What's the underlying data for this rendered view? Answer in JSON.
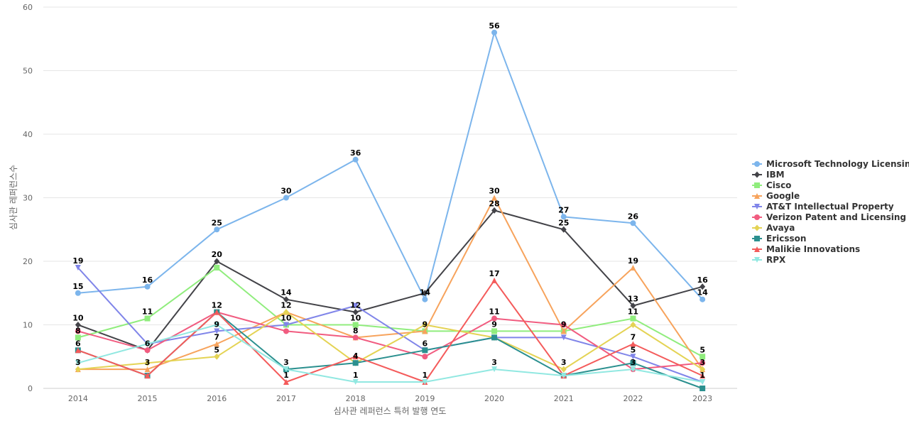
{
  "chart_data": {
    "type": "line",
    "title": "",
    "xlabel": "심사관 레퍼런스 특허 발행 연도",
    "ylabel": "심사관 레퍼런스수",
    "ylim": [
      0,
      60
    ],
    "yticks": [
      0,
      10,
      20,
      30,
      40,
      50,
      60
    ],
    "grid": true,
    "legend_position": "right",
    "x": [
      "2014",
      "2015",
      "2016",
      "2017",
      "2018",
      "2019",
      "2020",
      "2021",
      "2022",
      "2023"
    ],
    "series": [
      {
        "name": "Microsoft Technology Licensing",
        "color": "#7cb5ec",
        "marker": "circle",
        "values": [
          15,
          16,
          25,
          30,
          36,
          14,
          56,
          27,
          26,
          14
        ]
      },
      {
        "name": "IBM",
        "color": "#434348",
        "marker": "diamond",
        "values": [
          10,
          6,
          20,
          14,
          12,
          15,
          28,
          25,
          13,
          16
        ]
      },
      {
        "name": "Cisco",
        "color": "#90ed7d",
        "marker": "square",
        "values": [
          8,
          11,
          19,
          10,
          10,
          9,
          9,
          9,
          11,
          5
        ]
      },
      {
        "name": "Google",
        "color": "#f7a35c",
        "marker": "triangle",
        "values": [
          3,
          3,
          7,
          12,
          8,
          9,
          30,
          9,
          19,
          3
        ]
      },
      {
        "name": "AT&T Intellectual Property",
        "color": "#8085e9",
        "marker": "triangle-down",
        "values": [
          19,
          7,
          9,
          10,
          13,
          6,
          8,
          8,
          5,
          1
        ]
      },
      {
        "name": "Verizon Patent and Licensing",
        "color": "#f15c80",
        "marker": "circle",
        "values": [
          9,
          6,
          12,
          9,
          8,
          5,
          11,
          10,
          3,
          4
        ]
      },
      {
        "name": "Avaya",
        "color": "#e4d354",
        "marker": "diamond",
        "values": [
          3,
          4,
          5,
          12,
          4,
          10,
          8,
          3,
          10,
          3
        ]
      },
      {
        "name": "Ericsson",
        "color": "#2b908f",
        "marker": "square",
        "values": [
          6,
          2,
          12,
          3,
          4,
          6,
          8,
          2,
          4,
          0
        ]
      },
      {
        "name": "Malikie Innovations",
        "color": "#f45b5b",
        "marker": "triangle",
        "values": [
          6,
          2,
          12,
          1,
          5,
          1,
          17,
          2,
          7,
          2
        ]
      },
      {
        "name": "RPX",
        "color": "#91e8e1",
        "marker": "triangle-down",
        "values": [
          4,
          7,
          10,
          3,
          1,
          1,
          3,
          2,
          3,
          1
        ]
      }
    ],
    "data_labels": [
      {
        "x": "2014",
        "v": 19
      },
      {
        "x": "2014",
        "v": 15
      },
      {
        "x": "2014",
        "v": 10
      },
      {
        "x": "2014",
        "v": 8
      },
      {
        "x": "2014",
        "v": 6
      },
      {
        "x": "2014",
        "v": 3
      },
      {
        "x": "2015",
        "v": 16
      },
      {
        "x": "2015",
        "v": 11
      },
      {
        "x": "2015",
        "v": 6
      },
      {
        "x": "2015",
        "v": 3
      },
      {
        "x": "2016",
        "v": 25
      },
      {
        "x": "2016",
        "v": 20
      },
      {
        "x": "2016",
        "v": 12
      },
      {
        "x": "2016",
        "v": 9
      },
      {
        "x": "2016",
        "v": 7
      },
      {
        "x": "2016",
        "v": 5
      },
      {
        "x": "2017",
        "v": 30
      },
      {
        "x": "2017",
        "v": 14
      },
      {
        "x": "2017",
        "v": 12
      },
      {
        "x": "2017",
        "v": 10
      },
      {
        "x": "2017",
        "v": 3
      },
      {
        "x": "2017",
        "v": 1
      },
      {
        "x": "2018",
        "v": 36
      },
      {
        "x": "2018",
        "v": 12
      },
      {
        "x": "2018",
        "v": 10
      },
      {
        "x": "2018",
        "v": 8
      },
      {
        "x": "2018",
        "v": 4
      },
      {
        "x": "2018",
        "v": 1
      },
      {
        "x": "2019",
        "v": 14
      },
      {
        "x": "2019",
        "v": 9
      },
      {
        "x": "2019",
        "v": 6
      },
      {
        "x": "2019",
        "v": 1
      },
      {
        "x": "2020",
        "v": 56
      },
      {
        "x": "2020",
        "v": 30
      },
      {
        "x": "2020",
        "v": 28
      },
      {
        "x": "2020",
        "v": 17
      },
      {
        "x": "2020",
        "v": 11
      },
      {
        "x": "2020",
        "v": 9
      },
      {
        "x": "2020",
        "v": 3
      },
      {
        "x": "2021",
        "v": 27
      },
      {
        "x": "2021",
        "v": 25
      },
      {
        "x": "2021",
        "v": 9
      },
      {
        "x": "2021",
        "v": 3
      },
      {
        "x": "2022",
        "v": 26
      },
      {
        "x": "2022",
        "v": 19
      },
      {
        "x": "2022",
        "v": 13
      },
      {
        "x": "2022",
        "v": 11
      },
      {
        "x": "2022",
        "v": 7
      },
      {
        "x": "2022",
        "v": 5
      },
      {
        "x": "2022",
        "v": 3
      },
      {
        "x": "2023",
        "v": 16
      },
      {
        "x": "2023",
        "v": 14
      },
      {
        "x": "2023",
        "v": 5
      },
      {
        "x": "2023",
        "v": 3
      },
      {
        "x": "2023",
        "v": 1
      }
    ]
  }
}
